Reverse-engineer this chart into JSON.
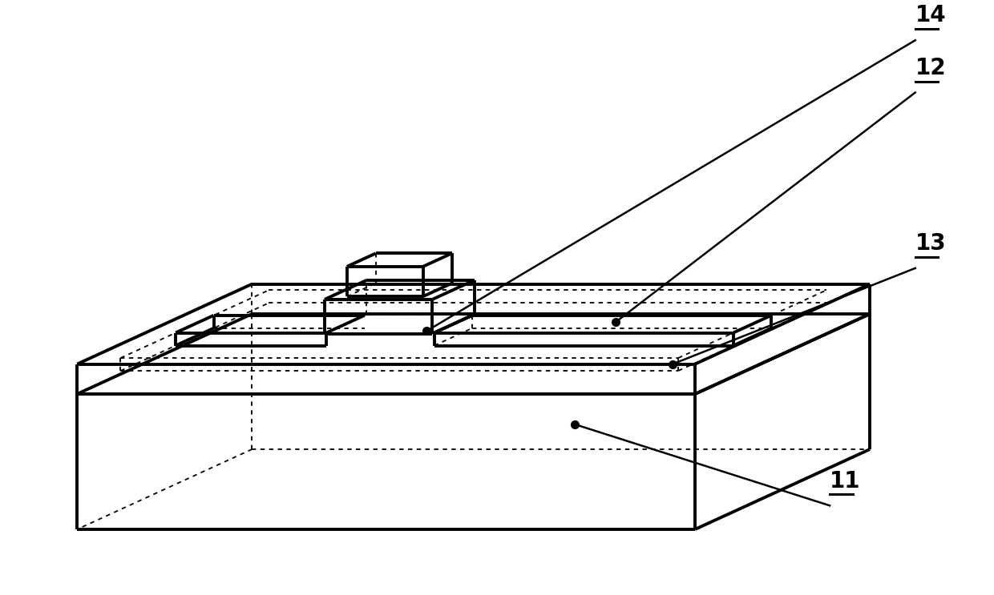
{
  "background_color": "#ffffff",
  "line_color": "#000000",
  "lw_thick": 2.8,
  "lw_thin": 1.8,
  "lw_dot": 1.3,
  "dot_pattern": [
    3,
    3
  ],
  "label_fontsize": 20,
  "label_fontweight": "bold",
  "labels": [
    "11",
    "12",
    "13",
    "14"
  ]
}
